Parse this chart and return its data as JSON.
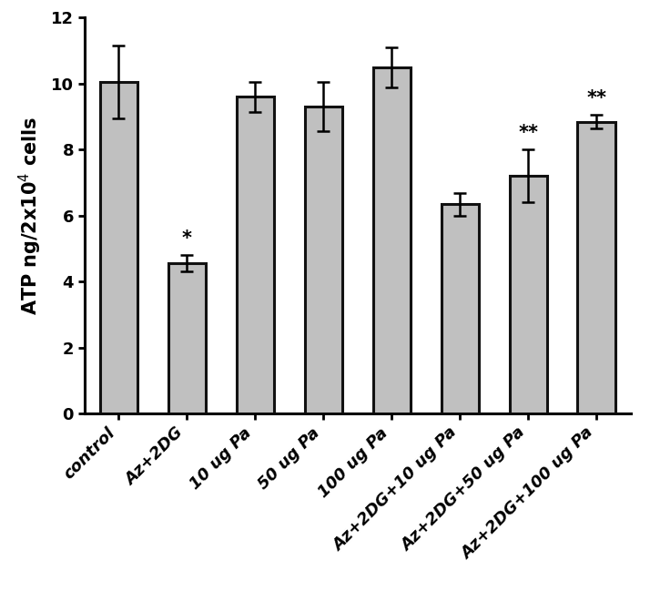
{
  "categories": [
    "control",
    "Az+2DG",
    "10 ug Pa",
    "50 ug Pa",
    "100 ug Pa",
    "Az+2DG+10 ug Pa",
    "Az+2DG+50 ug Pa",
    "Az+2DG+100 ug Pa"
  ],
  "values": [
    10.05,
    4.55,
    9.6,
    9.3,
    10.5,
    6.35,
    7.2,
    8.85
  ],
  "errors": [
    1.1,
    0.25,
    0.45,
    0.75,
    0.6,
    0.35,
    0.8,
    0.2
  ],
  "bar_color": "#C0C0C0",
  "bar_edgecolor": "#111111",
  "bar_linewidth": 2.2,
  "error_color": "black",
  "error_linewidth": 1.8,
  "error_capsize": 5,
  "ylabel": "ATP ng/2x10$^4$ cells",
  "ylim": [
    0,
    12
  ],
  "yticks": [
    0,
    2,
    4,
    6,
    8,
    10,
    12
  ],
  "significance": [
    "",
    "*",
    "",
    "",
    "",
    "",
    "**",
    "**"
  ],
  "sig_fontsize": 15,
  "ylabel_fontsize": 15,
  "tick_fontsize": 13,
  "background_color": "#ffffff",
  "fig_width": 7.14,
  "fig_height": 6.49,
  "bar_width": 0.55
}
